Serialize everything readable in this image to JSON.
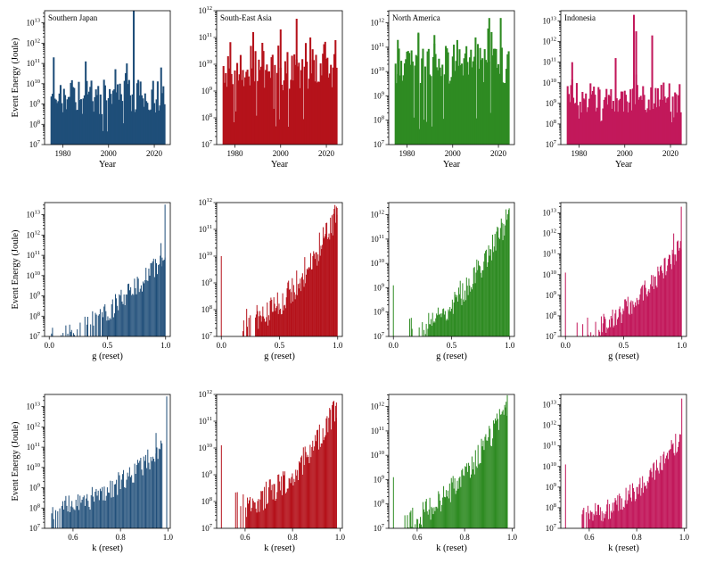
{
  "figure": {
    "regions": [
      {
        "name": "Southern Japan",
        "color": "#1f4e79"
      },
      {
        "name": "South-East Asia",
        "color": "#b5121b"
      },
      {
        "name": "North America",
        "color": "#2e8b22"
      },
      {
        "name": "Indonesia",
        "color": "#c2185b"
      }
    ],
    "ylabel": "Event Energy (Joule)",
    "y_exponent_range": [
      7,
      13
    ]
  },
  "chart_data": [
    {
      "type": "bar",
      "row": 0,
      "col": 0,
      "region": "Southern Japan",
      "title": "Southern Japan",
      "xlabel": "Year",
      "ylabel": "Event Energy (Joule)",
      "xlim": [
        1972,
        2027
      ],
      "ylim_exp": [
        7,
        13.6
      ],
      "xticks": [
        1980,
        2000,
        2020
      ],
      "xtick_labels": [
        "1980",
        "2000",
        "2020"
      ],
      "yticks": [
        7,
        8,
        9,
        10,
        11,
        12,
        13
      ],
      "ytick_labels": [
        "7",
        "8",
        "9",
        "10",
        "11",
        "12",
        "13"
      ],
      "color": "#1f4e79",
      "peaks": [
        [
          2011,
          13.6
        ],
        [
          1976,
          11.3
        ],
        [
          1990,
          11.1
        ],
        [
          2008,
          11.0
        ],
        [
          2023,
          10.8
        ]
      ],
      "baseline": [
        8.5,
        10.2
      ],
      "bar_width": 0.8,
      "x_start": 1975,
      "x_end": 2024.5,
      "n_bars": 100,
      "bars": [
        1,
        1.1
      ],
      "seed": 11
    },
    {
      "type": "bar",
      "row": 0,
      "col": 1,
      "region": "South-East Asia",
      "title": "South-East Asia",
      "xlabel": "Year",
      "ylabel": "",
      "xlim": [
        1972,
        2027
      ],
      "ylim_exp": [
        7,
        12
      ],
      "xticks": [
        1980,
        2000,
        2020
      ],
      "xtick_labels": [
        "1980",
        "2000",
        "2020"
      ],
      "yticks": [
        7,
        8,
        9,
        10,
        11,
        12
      ],
      "ytick_labels": [
        "7",
        "8",
        "9",
        "10",
        "11",
        "12"
      ],
      "color": "#b5121b",
      "peaks": [
        [
          2007,
          11.7
        ],
        [
          2000,
          11.3
        ],
        [
          1988,
          11.2
        ],
        [
          2013,
          11.0
        ],
        [
          2024,
          10.9
        ],
        [
          1992,
          10.8
        ]
      ],
      "baseline": [
        9.0,
        10.5
      ],
      "bar_width": 0.8,
      "x_start": 1975,
      "x_end": 2024.5,
      "n_bars": 100,
      "bars": [
        1,
        1.1
      ],
      "seed": 22
    },
    {
      "type": "bar",
      "row": 0,
      "col": 2,
      "region": "North America",
      "title": "North America",
      "xlabel": "Year",
      "ylabel": "",
      "xlim": [
        1972,
        2027
      ],
      "ylim_exp": [
        7,
        12.5
      ],
      "xticks": [
        1980,
        2000,
        2020
      ],
      "xtick_labels": [
        "1980",
        "2000",
        "2020"
      ],
      "yticks": [
        7,
        8,
        9,
        10,
        11,
        12
      ],
      "ytick_labels": [
        "7",
        "8",
        "9",
        "10",
        "11",
        "12"
      ],
      "color": "#2e8b22",
      "peaks": [
        [
          2016,
          12.2
        ],
        [
          2021,
          12.2
        ],
        [
          1985,
          11.6
        ],
        [
          1992,
          11.5
        ],
        [
          2010,
          11.4
        ],
        [
          1976,
          11.3
        ]
      ],
      "baseline": [
        9.5,
        11.0
      ],
      "bar_width": 0.8,
      "x_start": 1975,
      "x_end": 2024.5,
      "n_bars": 100,
      "bars": [
        1,
        1.1
      ],
      "seed": 33
    },
    {
      "type": "bar",
      "row": 0,
      "col": 3,
      "region": "Indonesia",
      "title": "Indonesia",
      "xlabel": "Year",
      "ylabel": "",
      "xlim": [
        1972,
        2027
      ],
      "ylim_exp": [
        7,
        13.5
      ],
      "xticks": [
        1980,
        2000,
        2020
      ],
      "xtick_labels": [
        "1980",
        "2000",
        "2020"
      ],
      "yticks": [
        7,
        8,
        9,
        10,
        11,
        12,
        13
      ],
      "ytick_labels": [
        "7",
        "8",
        "9",
        "10",
        "11",
        "12",
        "13"
      ],
      "color": "#c2185b",
      "peaks": [
        [
          2004,
          13.3
        ],
        [
          2005,
          12.5
        ],
        [
          2012,
          12.3
        ],
        [
          1996,
          11.2
        ],
        [
          1977,
          11.0
        ]
      ],
      "baseline": [
        8.5,
        10.0
      ],
      "bar_width": 0.8,
      "x_start": 1975,
      "x_end": 2024.5,
      "n_bars": 100,
      "bars": [
        1,
        1.1
      ],
      "seed": 44
    },
    {
      "type": "bar",
      "row": 1,
      "col": 0,
      "region": "Southern Japan",
      "title": "",
      "xlabel": "g (reset)",
      "ylabel": "Event Energy (Joule)",
      "xlim": [
        -0.04,
        1.04
      ],
      "ylim_exp": [
        7,
        13.6
      ],
      "xticks": [
        0.0,
        0.5,
        1.0
      ],
      "xtick_labels": [
        "0.0",
        "0.5",
        "1.0"
      ],
      "yticks": [
        7,
        8,
        9,
        10,
        11,
        12,
        13
      ],
      "ytick_labels": [
        "7",
        "8",
        "9",
        "10",
        "11",
        "12",
        "13"
      ],
      "color": "#1f4e79",
      "peaks": [
        [
          0.995,
          13.5
        ],
        [
          0.96,
          11.6
        ]
      ],
      "bar_width": 0.006,
      "x_start": 0.02,
      "x_end": 0.995,
      "n_bars": 120,
      "growth": [
        7.2,
        11.0
      ],
      "sparse_until": 0.45,
      "seed": 55
    },
    {
      "type": "bar",
      "row": 1,
      "col": 1,
      "region": "South-East Asia",
      "title": "",
      "xlabel": "g (reset)",
      "ylabel": "",
      "xlim": [
        -0.04,
        1.04
      ],
      "ylim_exp": [
        7,
        12
      ],
      "xticks": [
        0.0,
        0.5,
        1.0
      ],
      "xtick_labels": [
        "0.0",
        "0.5",
        "1.0"
      ],
      "yticks": [
        7,
        8,
        9,
        10,
        11,
        12
      ],
      "ytick_labels": [
        "7",
        "8",
        "9",
        "10",
        "11",
        "12"
      ],
      "color": "#b5121b",
      "peaks": [
        [
          0.0,
          10.0
        ],
        [
          0.995,
          11.8
        ]
      ],
      "bar_width": 0.006,
      "x_start": 0.18,
      "x_end": 0.995,
      "n_bars": 130,
      "growth": [
        7.5,
        11.6
      ],
      "sparse_until": 0.3,
      "seed": 66
    },
    {
      "type": "bar",
      "row": 1,
      "col": 2,
      "region": "North America",
      "title": "",
      "xlabel": "g (reset)",
      "ylabel": "",
      "xlim": [
        -0.04,
        1.04
      ],
      "ylim_exp": [
        7,
        12.5
      ],
      "xticks": [
        0.0,
        0.5,
        1.0
      ],
      "xtick_labels": [
        "0.0",
        "0.5",
        "1.0"
      ],
      "yticks": [
        7,
        8,
        9,
        10,
        11,
        12
      ],
      "ytick_labels": [
        "7",
        "8",
        "9",
        "10",
        "11",
        "12"
      ],
      "color": "#2e8b22",
      "peaks": [
        [
          0.0,
          9.1
        ],
        [
          0.99,
          12.2
        ]
      ],
      "bar_width": 0.006,
      "x_start": 0.12,
      "x_end": 0.995,
      "n_bars": 130,
      "growth": [
        7.3,
        12.0
      ],
      "sparse_until": 0.3,
      "seed": 77
    },
    {
      "type": "bar",
      "row": 1,
      "col": 3,
      "region": "Indonesia",
      "title": "",
      "xlabel": "g (reset)",
      "ylabel": "",
      "xlim": [
        -0.04,
        1.04
      ],
      "ylim_exp": [
        7,
        13.5
      ],
      "xticks": [
        0.0,
        0.5,
        1.0
      ],
      "xtick_labels": [
        "0.0",
        "0.5",
        "1.0"
      ],
      "yticks": [
        7,
        8,
        9,
        10,
        11,
        12,
        13
      ],
      "ytick_labels": [
        "7",
        "8",
        "9",
        "10",
        "11",
        "12",
        "13"
      ],
      "color": "#c2185b",
      "peaks": [
        [
          0.0,
          10.1
        ],
        [
          0.995,
          13.3
        ],
        [
          0.93,
          12.0
        ]
      ],
      "bar_width": 0.006,
      "x_start": 0.1,
      "x_end": 0.995,
      "n_bars": 130,
      "growth": [
        7.3,
        11.4
      ],
      "sparse_until": 0.3,
      "seed": 88
    },
    {
      "type": "bar",
      "row": 2,
      "col": 0,
      "region": "Southern Japan",
      "title": "",
      "xlabel": "k (reset)",
      "ylabel": "Event Energy (Joule)",
      "xlim": [
        0.48,
        1.01
      ],
      "ylim_exp": [
        7,
        13.6
      ],
      "xticks": [
        0.6,
        0.8,
        1.0
      ],
      "xtick_labels": [
        "0.6",
        "0.8",
        "1.0"
      ],
      "yticks": [
        7,
        8,
        9,
        10,
        11,
        12,
        13
      ],
      "ytick_labels": [
        "7",
        "8",
        "9",
        "10",
        "11",
        "12",
        "13"
      ],
      "color": "#1f4e79",
      "peaks": [
        [
          0.995,
          13.5
        ],
        [
          0.95,
          11.7
        ]
      ],
      "bar_width": 0.0032,
      "x_start": 0.51,
      "x_end": 0.975,
      "n_bars": 110,
      "growth": [
        8.0,
        11.0
      ],
      "sparse_until": 0.55,
      "seed": 99
    },
    {
      "type": "bar",
      "row": 2,
      "col": 1,
      "region": "South-East Asia",
      "title": "",
      "xlabel": "k (reset)",
      "ylabel": "",
      "xlim": [
        0.48,
        1.01
      ],
      "ylim_exp": [
        7,
        12
      ],
      "xticks": [
        0.6,
        0.8,
        1.0
      ],
      "xtick_labels": [
        "0.6",
        "0.8",
        "1.0"
      ],
      "yticks": [
        7,
        8,
        9,
        10,
        11,
        12
      ],
      "ytick_labels": [
        "7",
        "8",
        "9",
        "10",
        "11",
        "12"
      ],
      "color": "#b5121b",
      "peaks": [
        [
          0.5,
          10.1
        ],
        [
          0.985,
          11.7
        ]
      ],
      "bar_width": 0.0032,
      "x_start": 0.56,
      "x_end": 0.985,
      "n_bars": 120,
      "growth": [
        7.8,
        11.4
      ],
      "sparse_until": 0.6,
      "seed": 111
    },
    {
      "type": "bar",
      "row": 2,
      "col": 2,
      "region": "North America",
      "title": "",
      "xlabel": "k (reset)",
      "ylabel": "",
      "xlim": [
        0.48,
        1.01
      ],
      "ylim_exp": [
        7,
        12.5
      ],
      "xticks": [
        0.6,
        0.8,
        1.0
      ],
      "xtick_labels": [
        "0.6",
        "0.8",
        "1.0"
      ],
      "yticks": [
        7,
        8,
        9,
        10,
        11,
        12
      ],
      "ytick_labels": [
        "7",
        "8",
        "9",
        "10",
        "11",
        "12"
      ],
      "color": "#2e8b22",
      "peaks": [
        [
          0.5,
          9.1
        ],
        [
          0.975,
          12.2
        ]
      ],
      "bar_width": 0.0032,
      "x_start": 0.53,
      "x_end": 0.98,
      "n_bars": 125,
      "growth": [
        7.3,
        12.0
      ],
      "sparse_until": 0.55,
      "seed": 122
    },
    {
      "type": "bar",
      "row": 2,
      "col": 3,
      "region": "Indonesia",
      "title": "",
      "xlabel": "k (reset)",
      "ylabel": "",
      "xlim": [
        0.48,
        1.01
      ],
      "ylim_exp": [
        7,
        13.5
      ],
      "xticks": [
        0.6,
        0.8,
        1.0
      ],
      "xtick_labels": [
        "0.6",
        "0.8",
        "1.0"
      ],
      "yticks": [
        7,
        8,
        9,
        10,
        11,
        12,
        13
      ],
      "ytick_labels": [
        "7",
        "8",
        "9",
        "10",
        "11",
        "12",
        "13"
      ],
      "color": "#c2185b",
      "peaks": [
        [
          0.5,
          10.1
        ],
        [
          0.99,
          13.3
        ]
      ],
      "bar_width": 0.0032,
      "x_start": 0.57,
      "x_end": 0.985,
      "n_bars": 120,
      "growth": [
        7.6,
        11.4
      ],
      "sparse_until": 0.6,
      "seed": 133
    }
  ]
}
